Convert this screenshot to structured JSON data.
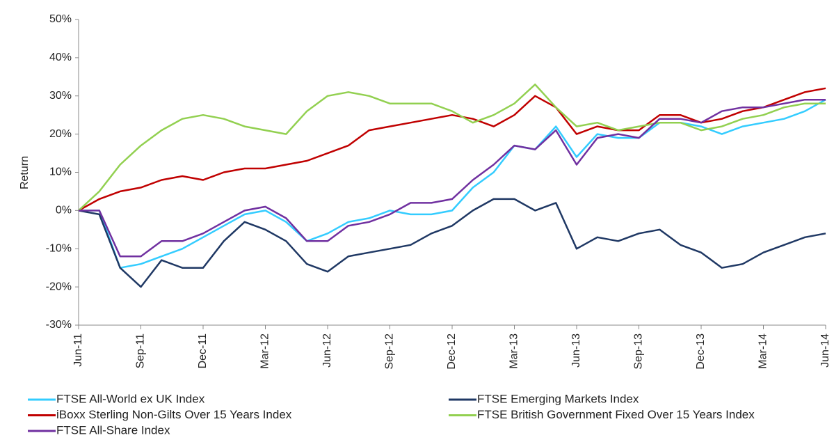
{
  "chart_data": {
    "type": "line",
    "y_label": "Return",
    "categories": [
      "Jun-11",
      null,
      null,
      "Sep-11",
      null,
      null,
      "Dec-11",
      null,
      null,
      "Mar-12",
      null,
      null,
      "Jun-12",
      null,
      null,
      "Sep-12",
      null,
      null,
      "Dec-12",
      null,
      null,
      "Mar-13",
      null,
      null,
      "Jun-13",
      null,
      null,
      "Sep-13",
      null,
      null,
      "Dec-13",
      null,
      null,
      "Mar-14",
      null,
      null,
      "Jun-14"
    ],
    "series": [
      {
        "name": "FTSE All-World ex UK Index",
        "color": "#33ccff",
        "values": [
          0,
          0,
          -15,
          -14,
          -12,
          -10,
          -7,
          -4,
          -1,
          0,
          -3,
          -8,
          -6,
          -3,
          -2,
          0,
          -1,
          -1,
          0,
          6,
          10,
          17,
          16,
          22,
          14,
          20,
          19,
          19,
          23,
          23,
          22,
          20,
          22,
          23,
          24,
          26,
          29
        ]
      },
      {
        "name": "FTSE Emerging Markets Index",
        "color": "#1f3864",
        "values": [
          0,
          -1,
          -15,
          -20,
          -13,
          -15,
          -15,
          -8,
          -3,
          -5,
          -8,
          -14,
          -16,
          -12,
          -11,
          -10,
          -9,
          -6,
          -4,
          0,
          3,
          3,
          0,
          2,
          -10,
          -7,
          -8,
          -6,
          -5,
          -9,
          -11,
          -15,
          -14,
          -11,
          -9,
          -7,
          -6
        ]
      },
      {
        "name": "iBoxx Sterling Non-Gilts Over 15 Years Index",
        "color": "#c00000",
        "values": [
          0,
          3,
          5,
          6,
          8,
          9,
          8,
          10,
          11,
          11,
          12,
          13,
          15,
          17,
          21,
          22,
          23,
          24,
          25,
          24,
          22,
          25,
          30,
          27,
          20,
          22,
          21,
          21,
          25,
          25,
          23,
          24,
          26,
          27,
          29,
          31,
          32
        ]
      },
      {
        "name": "FTSE British Government Fixed Over 15 Years Index",
        "color": "#92d050",
        "values": [
          0,
          5,
          12,
          17,
          21,
          24,
          25,
          24,
          22,
          21,
          20,
          26,
          30,
          31,
          30,
          28,
          28,
          28,
          26,
          23,
          25,
          28,
          33,
          27,
          22,
          23,
          21,
          22,
          23,
          23,
          21,
          22,
          24,
          25,
          27,
          28,
          28
        ]
      },
      {
        "name": "FTSE All-Share Index",
        "color": "#7030a0",
        "values": [
          0,
          0,
          -12,
          -12,
          -8,
          -8,
          -6,
          -3,
          0,
          1,
          -2,
          -8,
          -8,
          -4,
          -3,
          -1,
          2,
          2,
          3,
          8,
          12,
          17,
          16,
          21,
          12,
          19,
          20,
          19,
          24,
          24,
          23,
          26,
          27,
          27,
          28,
          29,
          29
        ]
      }
    ],
    "ylim": [
      -30,
      50
    ],
    "yticks": [
      {
        "value": -30,
        "label": "-30%"
      },
      {
        "value": -20,
        "label": "-20%"
      },
      {
        "value": -10,
        "label": "-10%"
      },
      {
        "value": 0,
        "label": "0%"
      },
      {
        "value": 10,
        "label": "10%"
      },
      {
        "value": 20,
        "label": "20%"
      },
      {
        "value": 30,
        "label": "30%"
      },
      {
        "value": 40,
        "label": "40%"
      },
      {
        "value": 50,
        "label": "50%"
      }
    ],
    "legend": "bottom"
  }
}
